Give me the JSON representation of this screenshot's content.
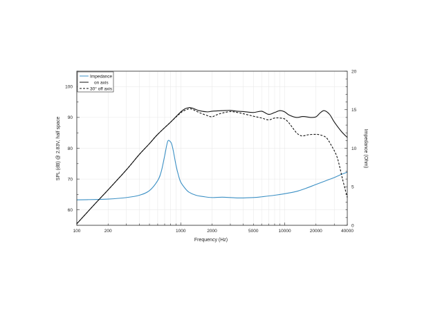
{
  "chart_data": {
    "type": "line",
    "title": "",
    "xlabel": "Frequency (Hz)",
    "ylabel_left": "SPL (dB) @ 2.83V, half space",
    "ylabel_right": "Impedance (Ohm)",
    "xscale": "log",
    "xlim": [
      100,
      40000
    ],
    "ylim_left": [
      55,
      105
    ],
    "ylim_right": [
      0,
      20
    ],
    "x_tick_labels": [
      "100",
      "200",
      "1000",
      "2000",
      "5000",
      "10000",
      "20000",
      "40000"
    ],
    "x_tick_values": [
      100,
      200,
      1000,
      2000,
      5000,
      10000,
      20000,
      40000
    ],
    "y_left_ticks": [
      60,
      70,
      80,
      90,
      100
    ],
    "y_left_tick_labels": [
      "60",
      "70",
      "80",
      "90",
      "100"
    ],
    "y_right_ticks": [
      0,
      5,
      10,
      15,
      20
    ],
    "y_right_tick_labels": [
      "0",
      "5",
      "10",
      "15",
      "20"
    ],
    "grid": true,
    "legend_position": "top-left",
    "series": [
      {
        "name": "Impedance",
        "axis": "right",
        "color": "#3a8fc4",
        "style": "solid",
        "x": [
          100,
          150,
          200,
          300,
          400,
          500,
          600,
          650,
          700,
          750,
          800,
          820,
          850,
          900,
          950,
          1000,
          1100,
          1200,
          1400,
          1700,
          2000,
          2500,
          3000,
          3500,
          4000,
          5000,
          6000,
          8000,
          10000,
          13000,
          16000,
          20000,
          25000,
          30000,
          35000,
          40000
        ],
        "values": [
          3.3,
          3.35,
          3.4,
          3.6,
          3.9,
          4.5,
          5.8,
          7.0,
          9.0,
          10.9,
          10.8,
          10.5,
          9.6,
          7.8,
          6.5,
          5.6,
          4.8,
          4.3,
          3.9,
          3.7,
          3.6,
          3.65,
          3.6,
          3.55,
          3.55,
          3.6,
          3.7,
          3.9,
          4.1,
          4.4,
          4.8,
          5.3,
          5.8,
          6.2,
          6.6,
          6.9
        ]
      },
      {
        "name": "on axis",
        "axis": "left",
        "color": "#111111",
        "style": "solid",
        "x": [
          100,
          150,
          200,
          300,
          400,
          500,
          600,
          800,
          1000,
          1100,
          1200,
          1300,
          1500,
          1800,
          2000,
          2500,
          3000,
          3500,
          4000,
          5000,
          6000,
          7000,
          8000,
          9000,
          10000,
          11000,
          13000,
          15000,
          18000,
          20000,
          22000,
          24000,
          27000,
          30000,
          35000,
          40000
        ],
        "values": [
          55.5,
          62.0,
          66.5,
          73.0,
          78.0,
          81.5,
          84.5,
          88.5,
          91.8,
          92.8,
          93.2,
          93.0,
          92.2,
          91.8,
          92.0,
          92.2,
          92.3,
          92.0,
          91.9,
          91.6,
          92.0,
          91.0,
          91.6,
          92.2,
          91.8,
          90.8,
          90.0,
          90.3,
          90.0,
          90.2,
          91.5,
          92.2,
          91.0,
          88.5,
          85.5,
          83.5
        ]
      },
      {
        "name": "30° off axis",
        "axis": "left",
        "color": "#111111",
        "style": "dashed",
        "x": [
          100,
          150,
          200,
          300,
          400,
          500,
          600,
          800,
          1000,
          1100,
          1200,
          1300,
          1500,
          1800,
          2000,
          2200,
          2500,
          3000,
          3500,
          4000,
          5000,
          6000,
          7000,
          8000,
          9000,
          10000,
          11000,
          12000,
          13000,
          14000,
          15000,
          17000,
          20000,
          22000,
          25000,
          28000,
          32000,
          36000,
          40000
        ],
        "values": [
          55.5,
          62.0,
          66.5,
          73.0,
          78.0,
          81.5,
          84.5,
          88.5,
          91.5,
          92.3,
          92.8,
          92.6,
          91.6,
          90.6,
          90.2,
          90.8,
          91.4,
          91.9,
          91.6,
          91.2,
          90.4,
          89.8,
          89.2,
          89.8,
          89.8,
          89.5,
          88.2,
          86.5,
          85.0,
          84.2,
          84.0,
          84.4,
          84.5,
          84.3,
          83.5,
          81.0,
          77.0,
          70.0,
          64.0
        ]
      }
    ]
  }
}
